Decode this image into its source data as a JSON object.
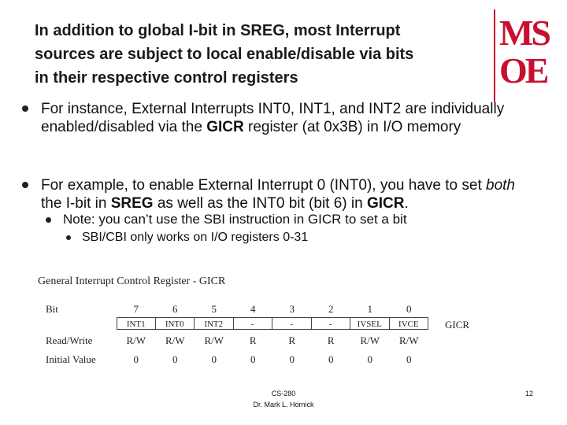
{
  "header": {
    "title_lines": [
      "In addition to global I-bit in SREG, most Interrupt",
      "sources are subject to local enable/disable via bits",
      "in their respective control registers"
    ],
    "logo": [
      "MS",
      "OE"
    ]
  },
  "bullets": [
    {
      "segments": [
        "For instance, External Interrupts INT0, INT1, and INT2 are individually enabled/disabled via the ",
        "GICR",
        " register (at 0x3B) in I/O memory"
      ]
    },
    {
      "segments": [
        "For example, to enable External Interrupt 0 (INT0), you have to set ",
        "both",
        " the I-bit in ",
        "SREG",
        " as well as the INT0 bit  (bit 6) in ",
        "GICR",
        "."
      ],
      "sub": "Note: you can’t use the SBI instruction in GICR to set a bit",
      "subsub": "SBI/CBI only works on I/O registers 0-31"
    }
  ],
  "register": {
    "title": "General Interrupt Control Register - GICR",
    "name": "GICR",
    "rows": [
      {
        "label": "Bit",
        "cells": [
          7,
          6,
          5,
          4,
          3,
          2,
          1,
          0
        ]
      },
      {
        "label": null,
        "cells": [
          "INT1",
          "INT0",
          "INT2",
          "-",
          "-",
          "-",
          "IVSEL",
          "IVCE"
        ]
      },
      {
        "label": "Read/Write",
        "cells": [
          "R/W",
          "R/W",
          "R/W",
          "R",
          "R",
          "R",
          "R/W",
          "R/W"
        ]
      },
      {
        "label": "Initial Value",
        "cells": [
          0,
          0,
          0,
          0,
          0,
          0,
          0,
          0
        ]
      }
    ]
  },
  "footer": {
    "course": "CS-280",
    "author": "Dr. Mark L. Hornick",
    "page": 12
  }
}
